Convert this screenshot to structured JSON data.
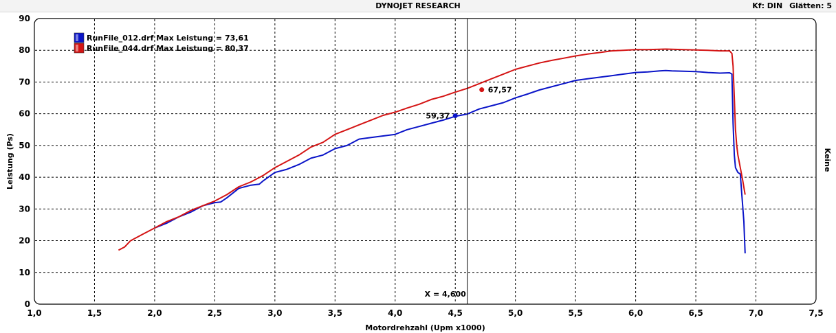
{
  "header": {
    "title": "DYNOJET RESEARCH",
    "kf_label": "Kf: DIN",
    "smoothing_label": "Glätten: 5"
  },
  "right_label": "Keine",
  "chart_data": {
    "type": "line",
    "xlabel": "Motordrehzahl (Upm x1000)",
    "ylabel": "Leistung (Ps)",
    "xlim": [
      1.0,
      7.5
    ],
    "ylim": [
      0,
      90
    ],
    "xticks": [
      "1,0",
      "1,5",
      "2,0",
      "2,5",
      "3,0",
      "3,5",
      "4,0",
      "4,5",
      "5,0",
      "5,5",
      "6,0",
      "6,5",
      "7,0",
      "7,5"
    ],
    "yticks": [
      "0",
      "10",
      "20",
      "30",
      "40",
      "50",
      "60",
      "70",
      "80",
      "90"
    ],
    "grid": true,
    "legend_position": "top-left",
    "cursor": {
      "x": 4.6,
      "label": "X = 4,600"
    },
    "series": [
      {
        "name": "RunFile_012.drf Max Leistung = 73,61",
        "color": "#0a14c8",
        "marker": {
          "x": 4.5,
          "y": 59.37,
          "label": "59,37"
        },
        "points": [
          [
            2.0,
            24.0
          ],
          [
            2.1,
            25.5
          ],
          [
            2.2,
            27.5
          ],
          [
            2.3,
            29.0
          ],
          [
            2.4,
            31.0
          ],
          [
            2.5,
            32.0
          ],
          [
            2.55,
            32.2
          ],
          [
            2.6,
            33.5
          ],
          [
            2.7,
            36.5
          ],
          [
            2.8,
            37.5
          ],
          [
            2.87,
            37.8
          ],
          [
            2.9,
            38.8
          ],
          [
            3.0,
            41.5
          ],
          [
            3.1,
            42.5
          ],
          [
            3.2,
            44.0
          ],
          [
            3.3,
            46.0
          ],
          [
            3.4,
            47.0
          ],
          [
            3.5,
            49.0
          ],
          [
            3.6,
            50.0
          ],
          [
            3.7,
            52.0
          ],
          [
            3.8,
            52.5
          ],
          [
            3.9,
            53.0
          ],
          [
            4.0,
            53.5
          ],
          [
            4.1,
            55.0
          ],
          [
            4.2,
            56.0
          ],
          [
            4.3,
            57.0
          ],
          [
            4.4,
            58.0
          ],
          [
            4.5,
            59.2
          ],
          [
            4.6,
            59.9
          ],
          [
            4.7,
            61.5
          ],
          [
            4.8,
            62.5
          ],
          [
            4.9,
            63.5
          ],
          [
            5.0,
            65.0
          ],
          [
            5.1,
            66.2
          ],
          [
            5.2,
            67.5
          ],
          [
            5.3,
            68.5
          ],
          [
            5.4,
            69.5
          ],
          [
            5.5,
            70.5
          ],
          [
            5.6,
            71.0
          ],
          [
            5.7,
            71.5
          ],
          [
            5.8,
            72.0
          ],
          [
            5.9,
            72.5
          ],
          [
            6.0,
            73.0
          ],
          [
            6.1,
            73.2
          ],
          [
            6.2,
            73.5
          ],
          [
            6.25,
            73.6
          ],
          [
            6.3,
            73.5
          ],
          [
            6.4,
            73.4
          ],
          [
            6.5,
            73.3
          ],
          [
            6.6,
            73.0
          ],
          [
            6.7,
            72.8
          ],
          [
            6.78,
            72.9
          ],
          [
            6.8,
            72.5
          ],
          [
            6.81,
            57.0
          ],
          [
            6.82,
            47.0
          ],
          [
            6.83,
            43.0
          ],
          [
            6.85,
            41.5
          ],
          [
            6.87,
            41.0
          ],
          [
            6.88,
            36.0
          ],
          [
            6.9,
            26.0
          ],
          [
            6.91,
            16.0
          ]
        ]
      },
      {
        "name": "RunFile_044.drf Max Leistung = 80,37",
        "color": "#d41414",
        "marker": {
          "x": 4.72,
          "y": 67.57,
          "label": "67,57"
        },
        "points": [
          [
            1.7,
            17.0
          ],
          [
            1.75,
            18.0
          ],
          [
            1.8,
            20.0
          ],
          [
            1.9,
            22.0
          ],
          [
            2.0,
            24.0
          ],
          [
            2.1,
            26.0
          ],
          [
            2.2,
            27.5
          ],
          [
            2.3,
            29.5
          ],
          [
            2.4,
            31.0
          ],
          [
            2.5,
            32.5
          ],
          [
            2.6,
            34.5
          ],
          [
            2.7,
            37.0
          ],
          [
            2.8,
            38.5
          ],
          [
            2.9,
            40.5
          ],
          [
            3.0,
            43.0
          ],
          [
            3.1,
            45.0
          ],
          [
            3.2,
            47.0
          ],
          [
            3.3,
            49.5
          ],
          [
            3.4,
            51.0
          ],
          [
            3.5,
            53.5
          ],
          [
            3.6,
            55.0
          ],
          [
            3.7,
            56.5
          ],
          [
            3.8,
            58.0
          ],
          [
            3.9,
            59.5
          ],
          [
            4.0,
            60.5
          ],
          [
            4.1,
            61.8
          ],
          [
            4.2,
            63.0
          ],
          [
            4.3,
            64.5
          ],
          [
            4.4,
            65.5
          ],
          [
            4.5,
            66.8
          ],
          [
            4.6,
            68.0
          ],
          [
            4.7,
            69.5
          ],
          [
            4.8,
            71.0
          ],
          [
            4.9,
            72.5
          ],
          [
            5.0,
            74.0
          ],
          [
            5.1,
            75.0
          ],
          [
            5.2,
            76.0
          ],
          [
            5.3,
            76.8
          ],
          [
            5.4,
            77.5
          ],
          [
            5.5,
            78.2
          ],
          [
            5.6,
            78.8
          ],
          [
            5.7,
            79.3
          ],
          [
            5.8,
            79.8
          ],
          [
            5.9,
            80.0
          ],
          [
            6.0,
            80.2
          ],
          [
            6.1,
            80.2
          ],
          [
            6.2,
            80.3
          ],
          [
            6.25,
            80.37
          ],
          [
            6.3,
            80.3
          ],
          [
            6.4,
            80.2
          ],
          [
            6.5,
            80.1
          ],
          [
            6.6,
            80.0
          ],
          [
            6.7,
            79.8
          ],
          [
            6.78,
            79.8
          ],
          [
            6.8,
            79.0
          ],
          [
            6.81,
            75.0
          ],
          [
            6.82,
            65.0
          ],
          [
            6.83,
            55.0
          ],
          [
            6.84,
            50.0
          ],
          [
            6.85,
            47.0
          ],
          [
            6.87,
            43.0
          ],
          [
            6.89,
            39.0
          ],
          [
            6.91,
            34.5
          ]
        ]
      }
    ]
  }
}
